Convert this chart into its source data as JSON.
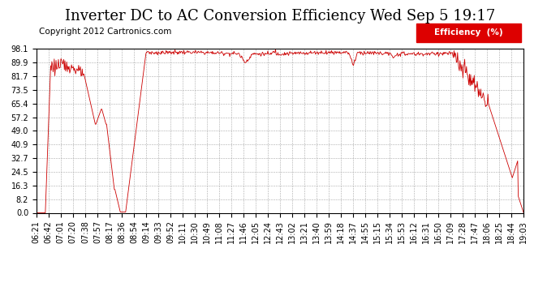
{
  "title": "Inverter DC to AC Conversion Efficiency Wed Sep 5 19:17",
  "copyright": "Copyright 2012 Cartronics.com",
  "legend_label": "Efficiency  (%)",
  "legend_bg": "#dd0000",
  "legend_fg": "#ffffff",
  "line_color": "#cc0000",
  "bg_color": "#ffffff",
  "grid_color": "#aaaaaa",
  "yticks": [
    0.0,
    8.2,
    16.3,
    24.5,
    32.7,
    40.9,
    49.0,
    57.2,
    65.4,
    73.5,
    81.7,
    89.9,
    98.1
  ],
  "xtick_labels": [
    "06:21",
    "06:42",
    "07:01",
    "07:20",
    "07:38",
    "07:57",
    "08:17",
    "08:36",
    "08:54",
    "09:14",
    "09:33",
    "09:52",
    "10:11",
    "10:30",
    "10:49",
    "11:08",
    "11:27",
    "11:46",
    "12:05",
    "12:24",
    "12:43",
    "13:02",
    "13:21",
    "13:40",
    "13:59",
    "14:18",
    "14:37",
    "14:55",
    "15:15",
    "15:34",
    "15:53",
    "16:12",
    "16:31",
    "16:50",
    "17:09",
    "17:28",
    "17:47",
    "18:06",
    "18:25",
    "18:44",
    "19:03"
  ],
  "ylim": [
    0.0,
    98.1
  ],
  "title_fontsize": 13,
  "axis_fontsize": 7,
  "copyright_fontsize": 7.5
}
